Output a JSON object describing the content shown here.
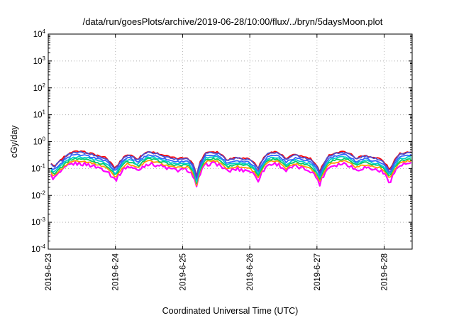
{
  "chart_data": {
    "type": "line",
    "title": "/data/run/goesPlots/archive/2019-06-28/10:00/flux/../bryn/5daysMoon.plot",
    "xlabel": "Coordinated Universal Time (UTC)",
    "ylabel": "cGy/day",
    "y_scale": "log",
    "ylim": [
      0.0001,
      10000
    ],
    "y_ticks": [
      {
        "base": "10",
        "exp": "-4",
        "value": 0.0001
      },
      {
        "base": "10",
        "exp": "-3",
        "value": 0.001
      },
      {
        "base": "10",
        "exp": "-2",
        "value": 0.01
      },
      {
        "base": "10",
        "exp": "-1",
        "value": 0.1
      },
      {
        "base": "10",
        "exp": "0",
        "value": 1
      },
      {
        "base": "10",
        "exp": "1",
        "value": 10
      },
      {
        "base": "10",
        "exp": "2",
        "value": 100
      },
      {
        "base": "10",
        "exp": "3",
        "value": 1000
      },
      {
        "base": "10",
        "exp": "4",
        "value": 10000
      }
    ],
    "xlim": [
      "2019-06-23T00:00",
      "2019-06-28T10:00"
    ],
    "x_ticks": [
      "2019-6-23",
      "2019-6-24",
      "2019-6-25",
      "2019-6-26",
      "2019-6-27",
      "2019-6-28"
    ],
    "x_tick_dates": [
      "2019-06-23",
      "2019-06-24",
      "2019-06-25",
      "2019-06-26",
      "2019-06-27",
      "2019-06-28"
    ],
    "grid": true,
    "legend": "none",
    "series_colors": [
      "#ff00ff",
      "#ff9900",
      "#00cc66",
      "#00cccc",
      "#3366ff",
      "#ff0000",
      "#4d4dcc"
    ],
    "series_levels": [
      0.12,
      0.15,
      0.18,
      0.21,
      0.25,
      0.33,
      0.31
    ],
    "dips": [
      {
        "time": "2019-06-23T02:00",
        "factor": 0.42
      },
      {
        "time": "2019-06-23T05:00",
        "factor": 0.7
      },
      {
        "time": "2019-06-24T00:00",
        "factor": 0.4
      },
      {
        "time": "2019-06-24T08:00",
        "factor": 0.55
      },
      {
        "time": "2019-06-25T05:00",
        "factor": 0.15
      },
      {
        "time": "2019-06-25T16:00",
        "factor": 0.6
      },
      {
        "time": "2019-06-26T03:00",
        "factor": 0.35
      },
      {
        "time": "2019-06-26T13:00",
        "factor": 0.55
      },
      {
        "time": "2019-06-27T01:00",
        "factor": 0.28
      },
      {
        "time": "2019-06-27T14:00",
        "factor": 0.6
      },
      {
        "time": "2019-06-28T02:00",
        "factor": 0.3
      }
    ]
  }
}
